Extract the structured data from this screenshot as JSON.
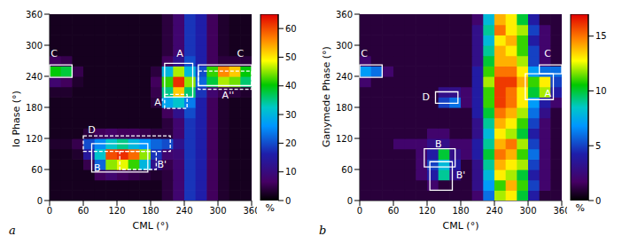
{
  "chart_data": [
    {
      "type": "heatmap",
      "panel": "a",
      "xlabel": "CML (°)",
      "ylabel": "Io Phase (°)",
      "xlim": [
        0,
        360
      ],
      "ylim": [
        0,
        360
      ],
      "xticks": [
        0,
        60,
        120,
        180,
        240,
        300,
        360
      ],
      "yticks": [
        0,
        60,
        120,
        180,
        240,
        300,
        360
      ],
      "cells": [
        [
          2,
          2,
          2,
          2,
          2,
          2,
          2,
          2,
          2,
          2,
          4,
          8,
          18,
          16,
          6,
          3,
          2,
          2
        ],
        [
          2,
          2,
          2,
          2,
          2,
          2,
          2,
          2,
          2,
          2,
          4,
          8,
          18,
          16,
          6,
          3,
          2,
          2
        ],
        [
          2,
          2,
          2,
          2,
          6,
          8,
          6,
          5,
          4,
          3,
          4,
          8,
          18,
          16,
          6,
          3,
          2,
          2
        ],
        [
          2,
          2,
          2,
          5,
          22,
          45,
          48,
          42,
          30,
          12,
          5,
          8,
          18,
          16,
          6,
          3,
          2,
          2
        ],
        [
          2,
          2,
          3,
          14,
          32,
          60,
          62,
          58,
          45,
          18,
          8,
          9,
          18,
          16,
          6,
          3,
          2,
          2
        ],
        [
          3,
          3,
          5,
          20,
          25,
          32,
          35,
          30,
          26,
          22,
          20,
          12,
          18,
          16,
          6,
          3,
          2,
          2
        ],
        [
          2,
          2,
          2,
          4,
          6,
          7,
          6,
          6,
          5,
          4,
          4,
          8,
          18,
          16,
          6,
          3,
          2,
          2
        ],
        [
          2,
          2,
          2,
          2,
          2,
          2,
          2,
          2,
          2,
          2,
          4,
          8,
          18,
          16,
          6,
          3,
          2,
          2
        ],
        [
          2,
          2,
          2,
          2,
          2,
          2,
          2,
          2,
          2,
          2,
          6,
          12,
          20,
          16,
          6,
          3,
          2,
          2
        ],
        [
          2,
          2,
          2,
          2,
          2,
          2,
          2,
          2,
          2,
          4,
          28,
          32,
          24,
          16,
          6,
          3,
          2,
          2
        ],
        [
          3,
          3,
          2,
          2,
          2,
          2,
          2,
          2,
          2,
          5,
          35,
          52,
          36,
          18,
          8,
          5,
          4,
          3
        ],
        [
          8,
          6,
          3,
          2,
          2,
          2,
          2,
          2,
          2,
          6,
          42,
          62,
          45,
          22,
          38,
          46,
          44,
          36
        ],
        [
          40,
          38,
          5,
          2,
          2,
          2,
          2,
          2,
          2,
          4,
          30,
          46,
          30,
          20,
          42,
          56,
          52,
          40
        ],
        [
          6,
          5,
          2,
          2,
          2,
          2,
          2,
          2,
          2,
          2,
          6,
          12,
          20,
          16,
          6,
          4,
          4,
          4
        ],
        [
          2,
          2,
          2,
          2,
          2,
          2,
          2,
          2,
          2,
          2,
          4,
          8,
          18,
          16,
          6,
          3,
          2,
          2
        ],
        [
          2,
          2,
          2,
          2,
          2,
          2,
          2,
          2,
          2,
          2,
          4,
          8,
          18,
          16,
          6,
          3,
          2,
          2
        ],
        [
          2,
          2,
          2,
          2,
          2,
          2,
          2,
          2,
          2,
          2,
          4,
          8,
          18,
          16,
          6,
          3,
          2,
          2
        ],
        [
          2,
          2,
          2,
          2,
          2,
          2,
          2,
          2,
          2,
          2,
          4,
          8,
          18,
          16,
          6,
          3,
          2,
          2
        ]
      ],
      "colorbar": {
        "range": [
          0,
          65
        ],
        "ticks": [
          0,
          10,
          20,
          30,
          40,
          50,
          60
        ],
        "label": "%"
      },
      "regions": [
        {
          "label": "C",
          "x": [
            0,
            40
          ],
          "y": [
            238,
            262
          ],
          "line_style": "solid",
          "label_x": 8,
          "label_y": 285
        },
        {
          "label": "A",
          "x": [
            205,
            255
          ],
          "y": [
            200,
            265
          ],
          "line_style": "solid",
          "label_x": 232,
          "label_y": 285
        },
        {
          "label": "A'",
          "x": [
            205,
            245
          ],
          "y": [
            178,
            205
          ],
          "line_style": "dashed",
          "label_x": 195,
          "label_y": 190
        },
        {
          "label": "C",
          "x": [
            265,
            360
          ],
          "y": [
            222,
            262
          ],
          "line_style": "solid",
          "label_x": 340,
          "label_y": 285
        },
        {
          "label": "A''",
          "x": [
            265,
            360
          ],
          "y": [
            215,
            250
          ],
          "line_style": "dashed",
          "label_x": 318,
          "label_y": 203
        },
        {
          "label": "D",
          "x": [
            60,
            215
          ],
          "y": [
            95,
            125
          ],
          "line_style": "dashed",
          "label_x": 75,
          "label_y": 137
        },
        {
          "label": "B",
          "x": [
            75,
            175
          ],
          "y": [
            55,
            110
          ],
          "line_style": "solid",
          "label_x": 85,
          "label_y": 63
        },
        {
          "label": "B'",
          "x": [
            125,
            190
          ],
          "y": [
            60,
            95
          ],
          "line_style": "dashed",
          "label_x": 200,
          "label_y": 70
        }
      ]
    },
    {
      "type": "heatmap",
      "panel": "b",
      "xlabel": "CML (°)",
      "ylabel": "Ganymede Phase (°)",
      "xlim": [
        0,
        360
      ],
      "ylim": [
        0,
        360
      ],
      "xticks": [
        0,
        60,
        120,
        180,
        240,
        300,
        360
      ],
      "yticks": [
        0,
        60,
        120,
        180,
        240,
        300,
        360
      ],
      "cells": [
        [
          1,
          1,
          1,
          1,
          1,
          1,
          1,
          1,
          1,
          1,
          2,
          6,
          12,
          13,
          10,
          4,
          1,
          1
        ],
        [
          1,
          1,
          1,
          1,
          1,
          1,
          2,
          1,
          1,
          1,
          3,
          7,
          11,
          14,
          11,
          5,
          2,
          1
        ],
        [
          1,
          1,
          1,
          1,
          1,
          2,
          4,
          9,
          3,
          1,
          3,
          8,
          13,
          12,
          10,
          4,
          2,
          1
        ],
        [
          1,
          1,
          1,
          1,
          1,
          2,
          5,
          8,
          4,
          1,
          3,
          9,
          14,
          13,
          12,
          5,
          2,
          1
        ],
        [
          1,
          1,
          1,
          1,
          1,
          2,
          4,
          10,
          3,
          2,
          4,
          10,
          15,
          14,
          11,
          6,
          2,
          1
        ],
        [
          1,
          1,
          1,
          2,
          2,
          2,
          3,
          3,
          2,
          2,
          4,
          9,
          14,
          15,
          12,
          5,
          2,
          1
        ],
        [
          1,
          1,
          1,
          1,
          1,
          1,
          2,
          2,
          1,
          1,
          3,
          8,
          13,
          12,
          10,
          4,
          2,
          1
        ],
        [
          1,
          1,
          1,
          1,
          1,
          1,
          1,
          1,
          1,
          1,
          3,
          9,
          14,
          13,
          11,
          5,
          2,
          1
        ],
        [
          1,
          1,
          1,
          1,
          1,
          1,
          1,
          1,
          1,
          1,
          4,
          10,
          15,
          14,
          12,
          6,
          3,
          1
        ],
        [
          1,
          1,
          1,
          1,
          1,
          1,
          1,
          5,
          6,
          2,
          4,
          11,
          16,
          15,
          13,
          7,
          4,
          2
        ],
        [
          1,
          1,
          1,
          1,
          1,
          1,
          1,
          3,
          3,
          2,
          4,
          11,
          16,
          15,
          13,
          10,
          12,
          4
        ],
        [
          2,
          1,
          1,
          1,
          1,
          1,
          1,
          1,
          1,
          1,
          4,
          12,
          16,
          16,
          14,
          11,
          13,
          5
        ],
        [
          7,
          6,
          2,
          1,
          1,
          1,
          1,
          1,
          1,
          1,
          4,
          11,
          15,
          15,
          13,
          7,
          6,
          6
        ],
        [
          2,
          1,
          1,
          1,
          1,
          1,
          1,
          1,
          1,
          1,
          3,
          10,
          14,
          14,
          12,
          5,
          2,
          1
        ],
        [
          1,
          1,
          1,
          1,
          1,
          1,
          1,
          1,
          1,
          1,
          3,
          9,
          14,
          13,
          11,
          5,
          2,
          1
        ],
        [
          1,
          1,
          1,
          1,
          1,
          1,
          1,
          1,
          1,
          1,
          3,
          8,
          13,
          14,
          11,
          4,
          2,
          1
        ],
        [
          1,
          1,
          1,
          1,
          1,
          1,
          1,
          1,
          1,
          1,
          3,
          9,
          15,
          13,
          12,
          5,
          2,
          1
        ],
        [
          1,
          1,
          1,
          1,
          1,
          1,
          1,
          1,
          1,
          1,
          2,
          8,
          14,
          13,
          10,
          4,
          1,
          1
        ]
      ],
      "colorbar": {
        "range": [
          0,
          17
        ],
        "ticks": [
          0,
          5,
          10,
          15
        ],
        "label": "%"
      },
      "regions": [
        {
          "label": "C",
          "x": [
            0,
            40
          ],
          "y": [
            238,
            262
          ],
          "line_style": "solid",
          "label_x": 8,
          "label_y": 285
        },
        {
          "label": "C",
          "x": [
            320,
            360
          ],
          "y": [
            245,
            262
          ],
          "line_style": "solid",
          "label_x": 335,
          "label_y": 285
        },
        {
          "label": "A",
          "x": [
            295,
            345
          ],
          "y": [
            195,
            245
          ],
          "line_style": "solid",
          "label_x": 335,
          "label_y": 207
        },
        {
          "label": "D",
          "x": [
            135,
            175
          ],
          "y": [
            188,
            210
          ],
          "line_style": "solid",
          "label_x": 118,
          "label_y": 200
        },
        {
          "label": "B",
          "x": [
            115,
            170
          ],
          "y": [
            65,
            100
          ],
          "line_style": "solid",
          "label_x": 140,
          "label_y": 110
        },
        {
          "label": "B'",
          "x": [
            125,
            165
          ],
          "y": [
            20,
            75
          ],
          "line_style": "solid",
          "label_x": 180,
          "label_y": 50
        }
      ]
    }
  ]
}
